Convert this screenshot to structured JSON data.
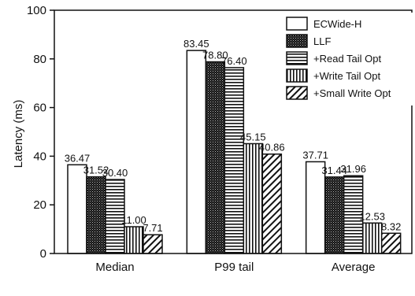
{
  "chart_data": {
    "type": "bar",
    "title": "",
    "xlabel": "",
    "ylabel": "Latency (ms)",
    "ylim": [
      0,
      100
    ],
    "yticks": [
      0,
      20,
      40,
      60,
      80,
      100
    ],
    "ytick_labels": [
      "0",
      "20",
      "40",
      "60",
      "80",
      "100"
    ],
    "grid": false,
    "legend_position": "top-right",
    "categories": [
      "Median",
      "P99 tail",
      "Average"
    ],
    "series": [
      {
        "name": "ECWide-H",
        "pattern": "white",
        "values": [
          36.47,
          83.45,
          37.71
        ],
        "labels": [
          "36.47",
          "83.45",
          "37.71"
        ]
      },
      {
        "name": "LLF",
        "pattern": "dense-dots",
        "values": [
          31.52,
          78.8,
          31.44
        ],
        "labels": [
          "31.52",
          "78.80",
          "31.44"
        ]
      },
      {
        "name": "+Read Tail Opt",
        "pattern": "horizontal-lines",
        "values": [
          30.4,
          76.4,
          31.96
        ],
        "labels": [
          "30.40",
          "76.40",
          "31.96"
        ]
      },
      {
        "name": "+Write Tail Opt",
        "pattern": "vertical-lines",
        "values": [
          11.0,
          45.15,
          12.53
        ],
        "labels": [
          "11.00",
          "45.15",
          "12.53"
        ]
      },
      {
        "name": "+Small Write Opt",
        "pattern": "diagonal-lines",
        "values": [
          7.71,
          40.86,
          8.32
        ],
        "labels": [
          "7.71",
          "40.86",
          "8.32"
        ]
      }
    ]
  }
}
